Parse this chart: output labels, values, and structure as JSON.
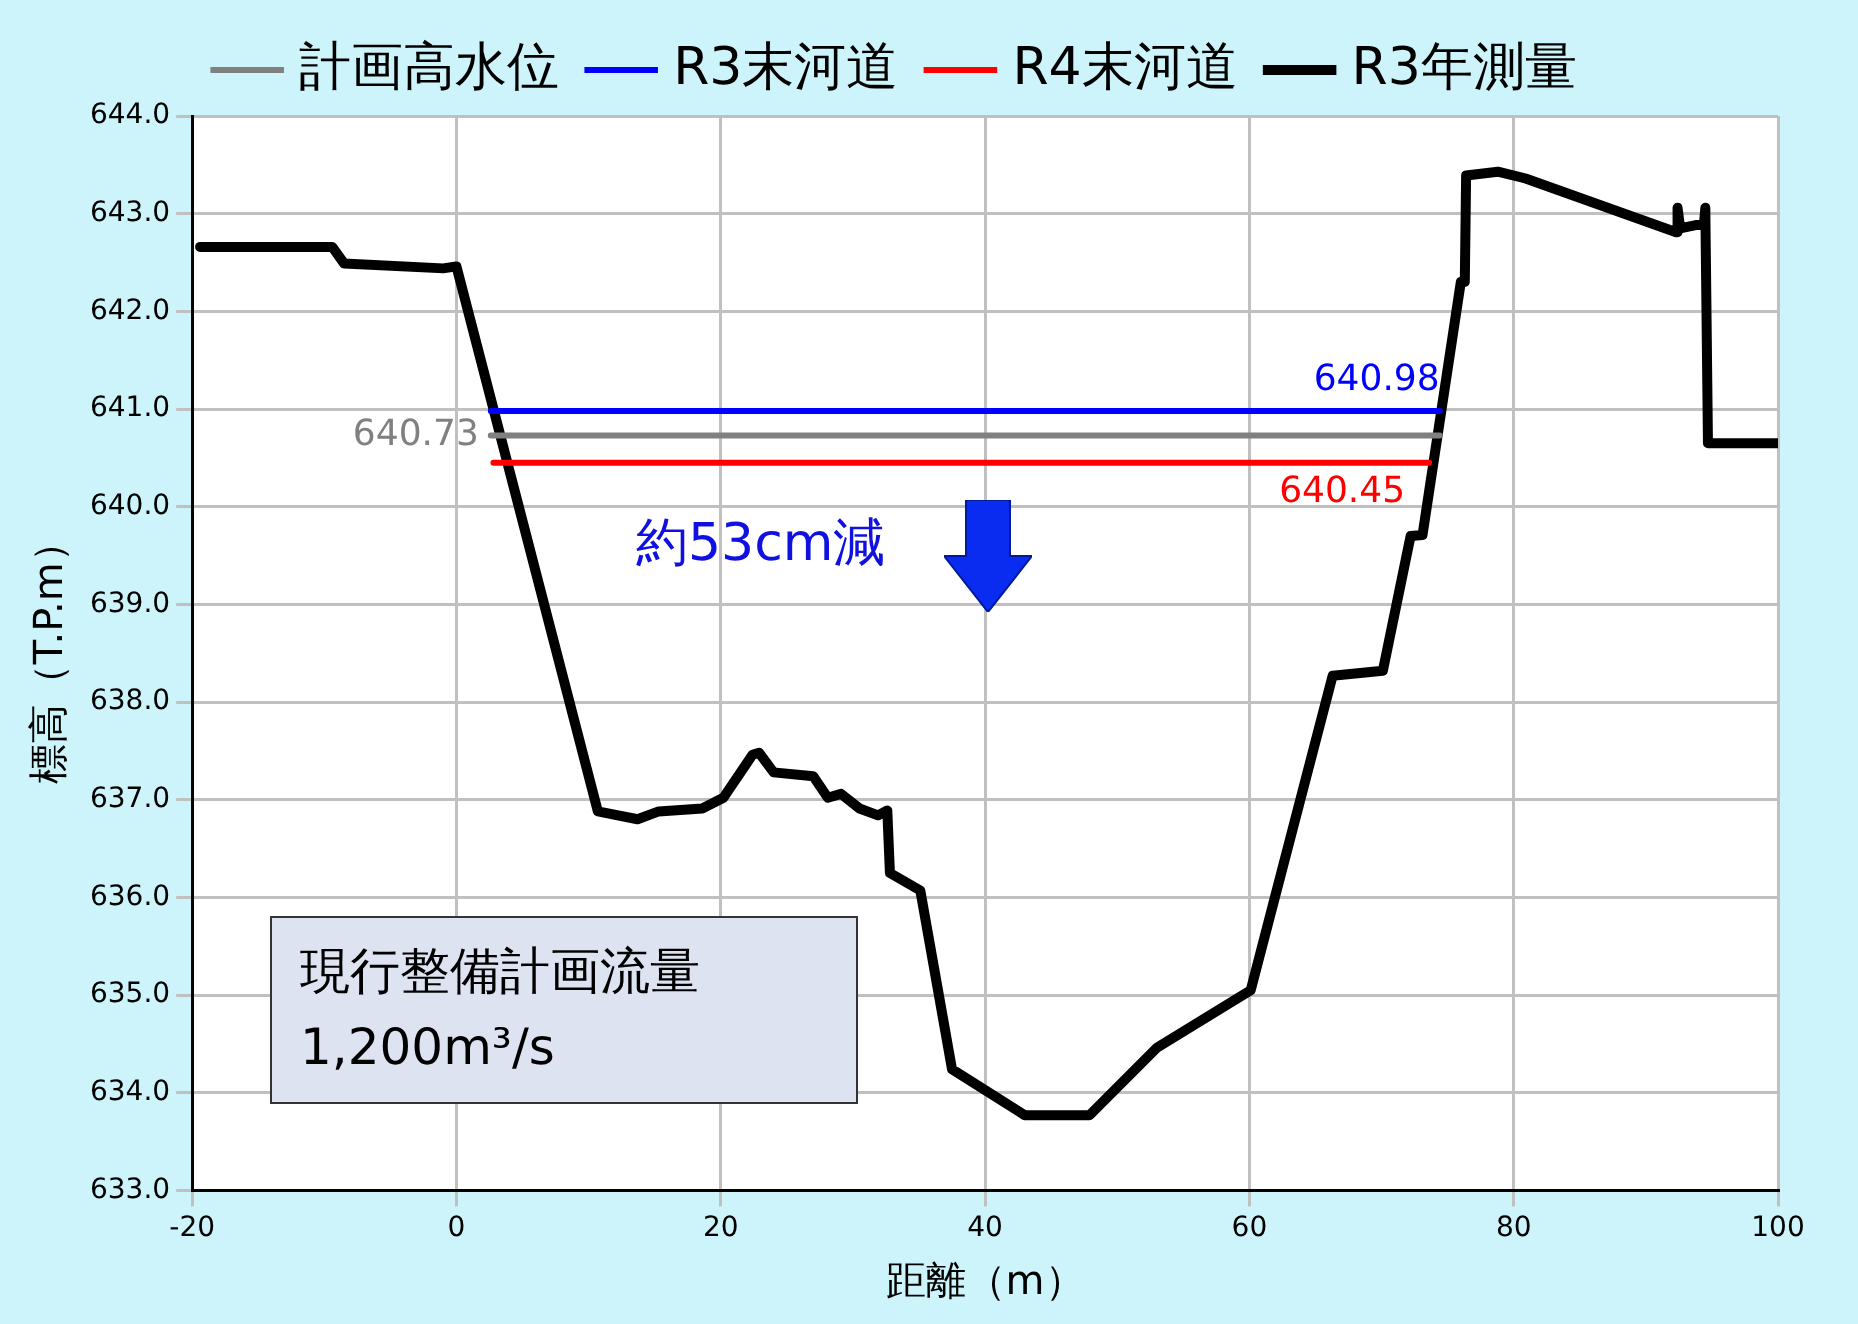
{
  "chart_data": {
    "type": "line",
    "xlabel": "距離（m）",
    "ylabel": "標高（T.P.m）",
    "legend": "top",
    "grid": true,
    "marker": "none",
    "line_style": "solid",
    "xlim": [
      -20,
      100
    ],
    "xticks": [
      -20,
      0,
      20,
      40,
      60,
      80,
      100
    ],
    "ylim": [
      633,
      644
    ],
    "yticks": [
      {
        "value": 633,
        "label": "633.0"
      },
      {
        "value": 634,
        "label": "634.0"
      },
      {
        "value": 635,
        "label": "635.0"
      },
      {
        "value": 636,
        "label": "636.0"
      },
      {
        "value": 637,
        "label": "637.0"
      },
      {
        "value": 638,
        "label": "638.0"
      },
      {
        "value": 639,
        "label": "639.0"
      },
      {
        "value": 640,
        "label": "640.0"
      },
      {
        "value": 641,
        "label": "641.0"
      },
      {
        "value": 642,
        "label": "642.0"
      },
      {
        "value": 643,
        "label": "643.0"
      },
      {
        "value": 644,
        "label": "644.0"
      }
    ],
    "annotations": [
      "約53cm減",
      "現行整備計画流量",
      "1,200m³/s"
    ],
    "series": [
      {
        "name": "計画高水位",
        "color": "#808080",
        "x": [
          2.6,
          74.4
        ],
        "values": [
          640.73,
          640.73
        ],
        "value_labels": [
          "640.73",
          null
        ]
      },
      {
        "name": "R3末河道",
        "color": "#0000ff",
        "x": [
          2.6,
          74.4
        ],
        "values": [
          640.98,
          640.98
        ],
        "value_labels": [
          null,
          "640.98"
        ]
      },
      {
        "name": "R4末河道",
        "color": "#ff0000",
        "x": [
          2.8,
          73.6
        ],
        "values": [
          640.45,
          640.45
        ],
        "value_labels": [
          null,
          "640.45"
        ]
      },
      {
        "name": "R3年測量",
        "color": "#000000",
        "x": [
          -19.4,
          -9.4,
          -8.5,
          -1.0,
          0,
          10.7,
          13.7,
          15.3,
          18.6,
          20.2,
          22.4,
          22.9,
          24.0,
          27.0,
          28.1,
          29.1,
          30.5,
          31.9,
          32.6,
          32.8,
          35.1,
          37.5,
          43.0,
          47.9,
          53.0,
          60.1,
          66.3,
          70.1,
          72.2,
          73.1,
          76.0,
          76.3,
          76.4,
          78.8,
          80.9,
          92.3,
          92.4,
          92.6,
          94.4,
          94.5,
          94.7,
          100
        ],
        "values": [
          642.66,
          642.66,
          642.49,
          642.44,
          642.46,
          636.88,
          636.8,
          636.88,
          636.91,
          637.02,
          637.46,
          637.48,
          637.28,
          637.24,
          637.02,
          637.06,
          636.91,
          636.84,
          636.89,
          636.25,
          636.07,
          634.24,
          633.77,
          633.77,
          634.46,
          635.05,
          638.27,
          638.32,
          639.7,
          639.71,
          642.3,
          642.3,
          643.39,
          643.43,
          643.36,
          642.81,
          643.06,
          642.85,
          642.9,
          643.06,
          640.65,
          640.65
        ]
      }
    ]
  }
}
